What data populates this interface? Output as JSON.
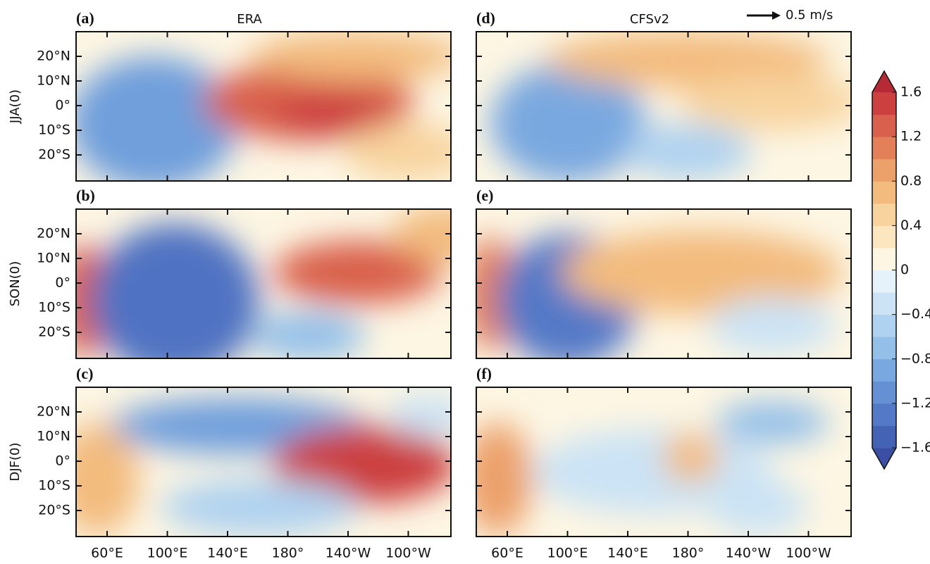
{
  "panels": [
    {
      "label": "(a)",
      "title": "ERA",
      "season": "JJA(0)"
    },
    {
      "label": "(b)",
      "season": "SON(0)"
    },
    {
      "label": "(c)",
      "season": "DJF(0)"
    },
    {
      "label": "(d)",
      "title": "CFSv2"
    },
    {
      "label": "(e)"
    },
    {
      "label": "(f)"
    }
  ],
  "lat_ticks": [
    "20°N",
    "10°N",
    "0°",
    "10°S",
    "20°S"
  ],
  "lon_ticks": [
    "60°E",
    "100°E",
    "140°E",
    "180°",
    "140°W",
    "100°W"
  ],
  "reference_vector": "0.5 m/s",
  "colorbar": {
    "ticks": [
      1.6,
      1.2,
      0.8,
      0.4,
      0,
      {
        "value": -0.4,
        "label": "−0.4"
      },
      {
        "value": -0.8,
        "label": "−0.8"
      },
      {
        "value": -1.2,
        "label": "−1.2"
      },
      {
        "value": -1.6,
        "label": "−1.6"
      }
    ],
    "lim": [
      -1.6,
      1.6
    ],
    "colors": [
      "#3a4fa3",
      "#4463b5",
      "#5479c7",
      "#6590d4",
      "#79a8e0",
      "#93bfe9",
      "#afd2f0",
      "#cbe3f5",
      "#e6f2fa",
      "#fdf6e3",
      "#fbe6bf",
      "#f8d39d",
      "#f3bb7e",
      "#eca06a",
      "#e3805a",
      "#d9604c",
      "#cc4040",
      "#b52a35"
    ]
  }
}
